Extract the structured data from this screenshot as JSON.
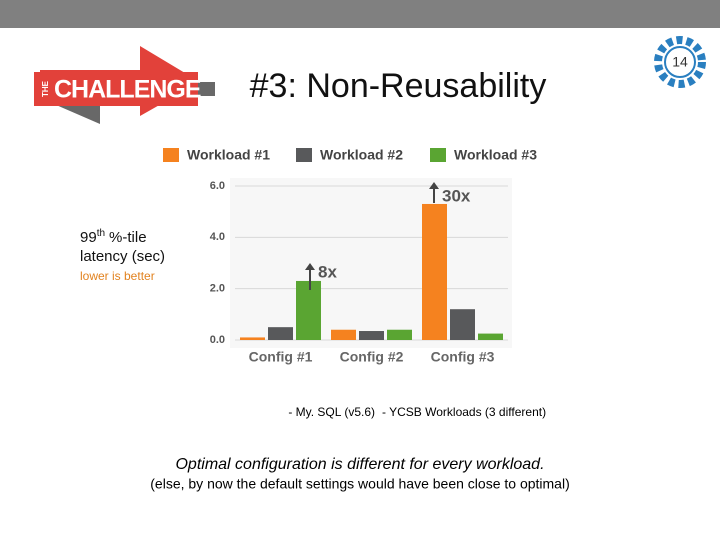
{
  "slide": {
    "number": "14",
    "title": "#3: Non-Reusability",
    "logo": [
      "THE",
      "CHALLENGE"
    ],
    "notes": [
      "- My. SQL (v5.6)",
      "- YCSB Workloads (3 different)"
    ],
    "conclusion": "Optimal configuration is different for every workload.",
    "aside": "(else, by now the default settings would have been close to optimal)"
  },
  "chart_data": {
    "type": "bar",
    "ylabel": [
      "99",
      "th",
      "%-tile",
      "latency (sec)"
    ],
    "subtitle": "lower is better",
    "categories": [
      "Config #1",
      "Config #2",
      "Config #3"
    ],
    "series": [
      {
        "name": "Workload #1",
        "color": "#f5821f",
        "values": [
          0.1,
          0.4,
          5.3
        ]
      },
      {
        "name": "Workload #2",
        "color": "#58595b",
        "values": [
          0.5,
          0.35,
          1.2
        ]
      },
      {
        "name": "Workload #3",
        "color": "#5aa532",
        "values": [
          2.3,
          0.4,
          0.25
        ]
      }
    ],
    "ylim": [
      0,
      6.0
    ],
    "yticks": [
      {
        "value": 0,
        "label": "0.0"
      },
      {
        "value": 2,
        "label": "2.0"
      },
      {
        "value": 4,
        "label": "4.0"
      },
      {
        "value": 6,
        "label": "6.0"
      }
    ],
    "grid": true,
    "annotations": [
      "8x",
      "30x"
    ]
  }
}
